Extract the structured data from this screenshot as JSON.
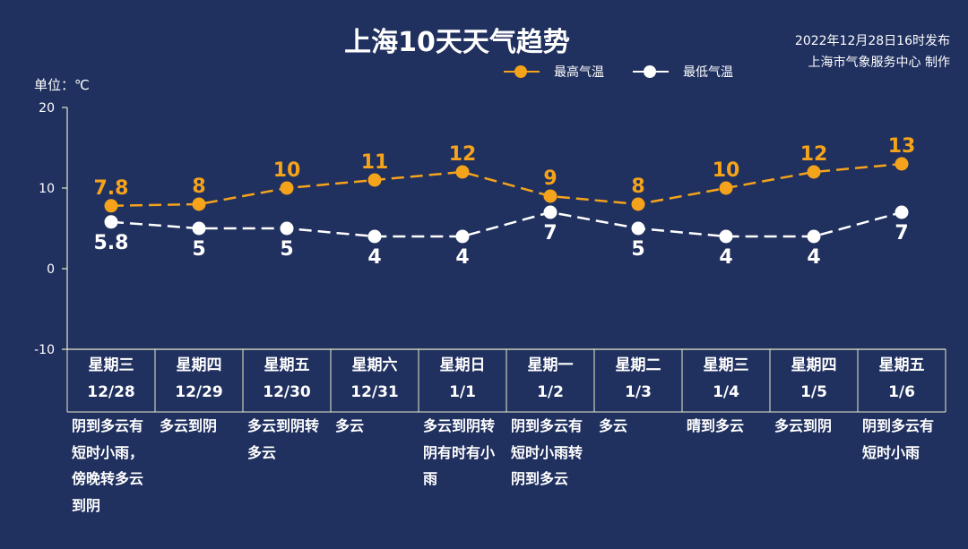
{
  "title": "上海10天天气趋势",
  "publish": {
    "line1": "2022年12月28日16时发布",
    "line2": "上海市气象服务中心 制作"
  },
  "unit_label": "单位：℃",
  "legend": {
    "high": {
      "label": "最高气温",
      "color": "#f5a31a"
    },
    "low": {
      "label": "最低气温",
      "color": "#ffffff"
    }
  },
  "chart_data": {
    "type": "line",
    "categories": [
      "12/28",
      "12/29",
      "12/30",
      "12/31",
      "1/1",
      "1/2",
      "1/3",
      "1/4",
      "1/5",
      "1/6"
    ],
    "weekdays": [
      "星期三",
      "星期四",
      "星期五",
      "星期六",
      "星期日",
      "星期一",
      "星期二",
      "星期三",
      "星期四",
      "星期五"
    ],
    "weather": [
      "阴到多云有\n短时小雨，\n傍晚转多云\n到阴",
      "多云到阴",
      "多云到阴转\n多云",
      "多云",
      "多云到阴转\n阴有时有小\n雨",
      "阴到多云有\n短时小雨转\n阴到多云",
      "多云",
      "晴到多云",
      "多云到阴",
      "阴到多云有\n短时小雨"
    ],
    "series": [
      {
        "name": "最高气温",
        "values": [
          7.8,
          8,
          10,
          11,
          12,
          9,
          8,
          10,
          12,
          13
        ],
        "color": "#f5a31a",
        "labels": [
          "7.8",
          "8",
          "10",
          "11",
          "12",
          "9",
          "8",
          "10",
          "12",
          "13"
        ]
      },
      {
        "name": "最低气温",
        "values": [
          5.8,
          5,
          5,
          4,
          4,
          7,
          5,
          4,
          4,
          7
        ],
        "color": "#ffffff",
        "labels": [
          "5.8",
          "5",
          "5",
          "4",
          "4",
          "7",
          "5",
          "4",
          "4",
          "7"
        ]
      }
    ],
    "ylim": [
      -10,
      20
    ],
    "yticks": [
      "20",
      "10",
      "0",
      "-10"
    ],
    "line_style": "dashed",
    "grid": false,
    "legend_position": "top-center"
  }
}
